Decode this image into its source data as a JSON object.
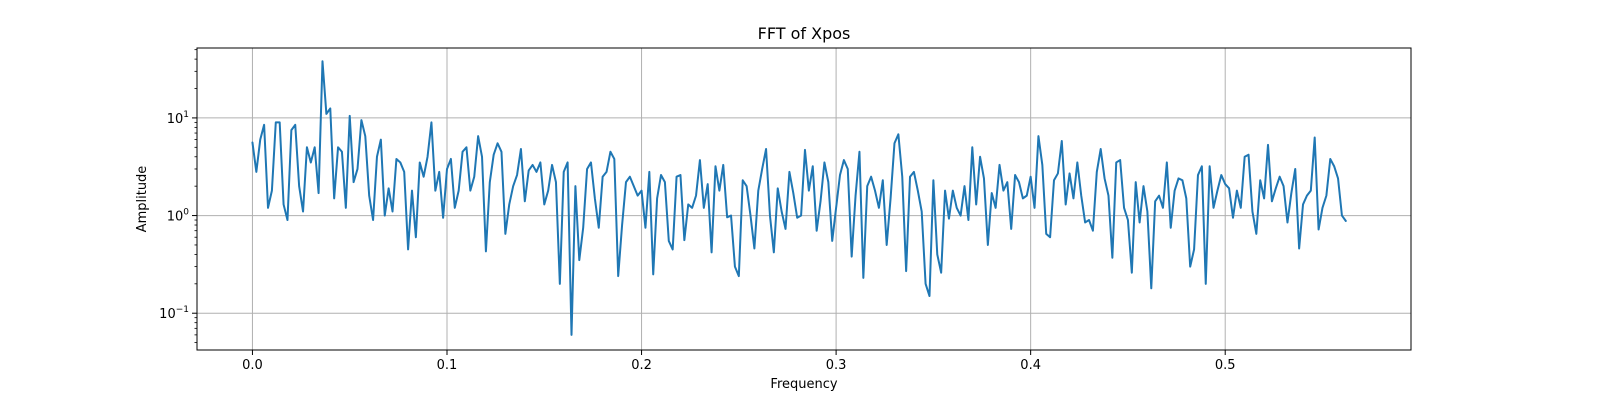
{
  "chart_data": {
    "type": "line",
    "title": "FFT of Xpos",
    "xlabel": "Frequency",
    "ylabel": "Amplitude",
    "xlim": [
      -0.0285,
      0.5955
    ],
    "ylim": [
      0.042,
      52
    ],
    "yscale": "log",
    "grid": true,
    "line_color": "#1f77b4",
    "x_ticks": [
      {
        "value": 0.0,
        "label": "0.0"
      },
      {
        "value": 0.1,
        "label": "0.1"
      },
      {
        "value": 0.2,
        "label": "0.2"
      },
      {
        "value": 0.3,
        "label": "0.3"
      },
      {
        "value": 0.4,
        "label": "0.4"
      },
      {
        "value": 0.5,
        "label": "0.5"
      }
    ],
    "y_ticks": [
      {
        "value": 0.1,
        "base": "10",
        "exp": "−1"
      },
      {
        "value": 1,
        "base": "10",
        "exp": "0"
      },
      {
        "value": 10,
        "base": "10",
        "exp": "1"
      }
    ],
    "series": [
      {
        "x_start": 0.0,
        "x_step": 0.001,
        "x_key": [
          0.0,
          0.002,
          0.004,
          0.006,
          0.008,
          0.01,
          0.012,
          0.014,
          0.016,
          0.018,
          0.02,
          0.022,
          0.024,
          0.026,
          0.028,
          0.03,
          0.032,
          0.034,
          0.036,
          0.038,
          0.04,
          0.042,
          0.044,
          0.046,
          0.048,
          0.05,
          0.052,
          0.054,
          0.056,
          0.058,
          0.06,
          0.062,
          0.064,
          0.066,
          0.068,
          0.07,
          0.072,
          0.074,
          0.076,
          0.078,
          0.08,
          0.082,
          0.084,
          0.086,
          0.088,
          0.09,
          0.092,
          0.094,
          0.096,
          0.098,
          0.1,
          0.102,
          0.104,
          0.106,
          0.108,
          0.11,
          0.112,
          0.114,
          0.116,
          0.118,
          0.12,
          0.122,
          0.124,
          0.126,
          0.128,
          0.13,
          0.132,
          0.134,
          0.136,
          0.138,
          0.14,
          0.142,
          0.144,
          0.146,
          0.148,
          0.15,
          0.152,
          0.154,
          0.156,
          0.158,
          0.16,
          0.162,
          0.164,
          0.166,
          0.168,
          0.17,
          0.172,
          0.174,
          0.176,
          0.178,
          0.18,
          0.182,
          0.184,
          0.186,
          0.188,
          0.19,
          0.192,
          0.194,
          0.196,
          0.198,
          0.2,
          0.202,
          0.204,
          0.206,
          0.208,
          0.21,
          0.212,
          0.214,
          0.216,
          0.218,
          0.22,
          0.222,
          0.224,
          0.226,
          0.228,
          0.23,
          0.232,
          0.234,
          0.236,
          0.238,
          0.24,
          0.242,
          0.244,
          0.246,
          0.248,
          0.25,
          0.252,
          0.254,
          0.256,
          0.258,
          0.26,
          0.262,
          0.264,
          0.266,
          0.268,
          0.27,
          0.272,
          0.274,
          0.276,
          0.278,
          0.28,
          0.282,
          0.284,
          0.286,
          0.288,
          0.29,
          0.292,
          0.294,
          0.296,
          0.298,
          0.3,
          0.302,
          0.304,
          0.306,
          0.308,
          0.31,
          0.312,
          0.314,
          0.316,
          0.318,
          0.32,
          0.322,
          0.324,
          0.326,
          0.328,
          0.33,
          0.332,
          0.334,
          0.336,
          0.338,
          0.34,
          0.342,
          0.344,
          0.346,
          0.348,
          0.35,
          0.352,
          0.354,
          0.356,
          0.358,
          0.36,
          0.362,
          0.364,
          0.366,
          0.368,
          0.37,
          0.372,
          0.374,
          0.376,
          0.378,
          0.38,
          0.382,
          0.384,
          0.386,
          0.388,
          0.39,
          0.392,
          0.394,
          0.396,
          0.398,
          0.4,
          0.402,
          0.404,
          0.406,
          0.408,
          0.41,
          0.412,
          0.414,
          0.416,
          0.418,
          0.42,
          0.422,
          0.424,
          0.426,
          0.428,
          0.43,
          0.432,
          0.434,
          0.436,
          0.438,
          0.44,
          0.442,
          0.444,
          0.446,
          0.448,
          0.45,
          0.452,
          0.454,
          0.456,
          0.458,
          0.46,
          0.462,
          0.464,
          0.466,
          0.468,
          0.47,
          0.472,
          0.474,
          0.476,
          0.478,
          0.48,
          0.482,
          0.484,
          0.486,
          0.488,
          0.49,
          0.492,
          0.494,
          0.496,
          0.498,
          0.5,
          0.502,
          0.504,
          0.506,
          0.508,
          0.51,
          0.512,
          0.514,
          0.516,
          0.518,
          0.52,
          0.522,
          0.524,
          0.526,
          0.528,
          0.53,
          0.532,
          0.534,
          0.536,
          0.538,
          0.54,
          0.542,
          0.544,
          0.546,
          0.548,
          0.55,
          0.552,
          0.554,
          0.556,
          0.558,
          0.56,
          0.562,
          0.564,
          0.566
        ],
        "values": [
          5.6,
          2.8,
          6.0,
          8.5,
          1.2,
          1.8,
          9.0,
          9.0,
          1.3,
          0.9,
          7.5,
          8.5,
          2.0,
          1.1,
          5.0,
          3.5,
          5.0,
          1.7,
          38.0,
          11.0,
          12.5,
          1.5,
          5.0,
          4.5,
          1.2,
          10.5,
          2.2,
          3.0,
          9.5,
          6.5,
          1.6,
          0.9,
          4.0,
          6.0,
          1.0,
          1.9,
          1.1,
          3.8,
          3.5,
          2.8,
          0.45,
          1.8,
          0.6,
          3.5,
          2.5,
          4.0,
          9.0,
          1.8,
          2.8,
          0.95,
          3.0,
          3.8,
          1.2,
          1.8,
          4.5,
          5.0,
          1.8,
          2.5,
          6.5,
          4.0,
          0.43,
          2.2,
          4.2,
          5.5,
          4.5,
          0.65,
          1.3,
          2.0,
          2.6,
          4.8,
          1.4,
          2.9,
          3.3,
          2.8,
          3.5,
          1.3,
          1.8,
          3.3,
          2.2,
          0.2,
          2.8,
          3.5,
          0.06,
          2.0,
          0.35,
          0.75,
          3.0,
          3.5,
          1.5,
          0.75,
          2.5,
          2.8,
          4.5,
          3.8,
          0.24,
          0.8,
          2.2,
          2.5,
          2.0,
          1.6,
          1.8,
          0.75,
          2.8,
          0.25,
          1.5,
          2.6,
          2.2,
          0.55,
          0.45,
          2.5,
          2.6,
          0.56,
          1.3,
          1.2,
          1.6,
          3.7,
          1.2,
          2.1,
          0.42,
          3.2,
          1.8,
          3.3,
          0.96,
          1.0,
          0.3,
          0.24,
          2.3,
          2.0,
          1.0,
          0.46,
          1.8,
          3.0,
          4.8,
          1.0,
          0.42,
          1.9,
          1.1,
          0.73,
          2.8,
          1.7,
          0.95,
          1.0,
          4.7,
          1.8,
          3.2,
          0.7,
          1.4,
          3.5,
          2.2,
          0.55,
          1.2,
          2.6,
          3.7,
          3.0,
          0.38,
          1.6,
          4.5,
          0.23,
          2.0,
          2.5,
          1.8,
          1.2,
          2.3,
          0.5,
          1.5,
          5.5,
          6.8,
          2.5,
          0.27,
          2.5,
          2.8,
          1.8,
          1.1,
          0.2,
          0.15,
          2.3,
          0.4,
          0.26,
          1.8,
          0.93,
          1.8,
          1.2,
          1.0,
          2.0,
          0.9,
          5.0,
          1.3,
          4.0,
          2.4,
          0.5,
          1.7,
          1.2,
          3.3,
          1.8,
          2.2,
          0.73,
          2.6,
          2.2,
          1.5,
          1.6,
          2.5,
          1.2,
          6.5,
          3.3,
          0.65,
          0.6,
          2.3,
          2.7,
          5.8,
          1.3,
          2.7,
          1.5,
          3.5,
          1.6,
          0.85,
          0.9,
          0.7,
          2.8,
          4.8,
          2.4,
          1.6,
          0.37,
          3.5,
          3.7,
          1.2,
          0.9,
          0.26,
          2.2,
          0.85,
          2.0,
          1.1,
          0.18,
          1.4,
          1.6,
          1.2,
          3.5,
          0.75,
          1.8,
          2.4,
          2.3,
          1.5,
          0.3,
          0.45,
          2.6,
          3.2,
          0.2,
          3.2,
          1.2,
          1.8,
          2.6,
          2.1,
          1.9,
          0.95,
          1.8,
          1.2,
          4.0,
          4.2,
          1.1,
          0.65,
          2.3,
          1.5,
          5.3,
          1.4,
          1.9,
          2.5,
          2.0,
          0.85,
          1.7,
          3.0,
          0.46,
          1.3,
          1.6,
          1.8,
          6.3,
          0.72,
          1.2,
          1.6,
          3.8,
          3.2,
          2.4,
          1.0,
          0.88
        ]
      }
    ]
  }
}
